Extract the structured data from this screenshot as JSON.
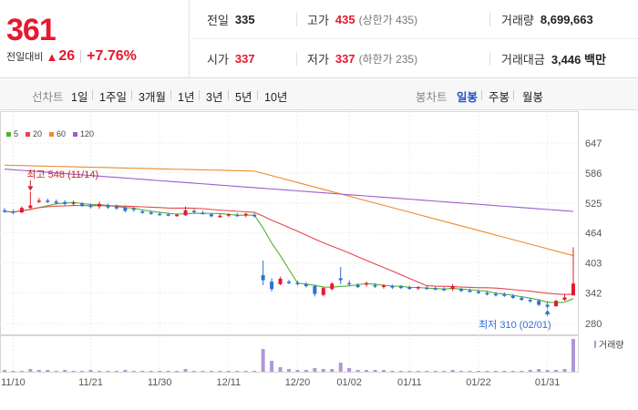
{
  "summary": {
    "price": "361",
    "change_label": "전일대비",
    "change_arrow": "▲",
    "change_value": "26",
    "change_rate": "+7.76%",
    "prev_close": {
      "label": "전일",
      "value": "335"
    },
    "high": {
      "label": "고가",
      "value": "435",
      "limit_text": "(상한가 435)"
    },
    "volume": {
      "label": "거래량",
      "value": "8,699,663"
    },
    "open": {
      "label": "시가",
      "value": "337"
    },
    "low": {
      "label": "저가",
      "value": "337",
      "limit_text": "(하한가 235)"
    },
    "amount": {
      "label": "거래대금",
      "value": "3,446 백만"
    }
  },
  "period_bar": {
    "line_label": "선차트",
    "line_options": [
      "1일",
      "1주일",
      "3개월",
      "1년",
      "3년",
      "5년",
      "10년"
    ],
    "candle_label": "봉차트",
    "candle_options": [
      "일봉",
      "주봉",
      "월봉"
    ],
    "active_candle": "일봉"
  },
  "colors": {
    "up": "#e5182e",
    "down": "#2f6fd6",
    "ma5": "#4fb12f",
    "ma20": "#e8474a",
    "ma60": "#f08a2a",
    "ma120": "#9a5fc9",
    "volume": "#b197d6",
    "active": "#1f55c8"
  },
  "chart_data": {
    "type": "candlestick",
    "legend": [
      "5",
      "20",
      "60",
      "120"
    ],
    "y_ticks": [
      647,
      586,
      525,
      464,
      403,
      342,
      280
    ],
    "x_labels": [
      "11/10",
      "11/21",
      "11/30",
      "12/11",
      "12/20",
      "01/02",
      "01/11",
      "01/22",
      "01/31"
    ],
    "high_annotation": "최고 548 (11/14)",
    "low_annotation": "최저 310 (02/01)",
    "volume_label": "거래량",
    "ohlc": [
      [
        510,
        515,
        505,
        508
      ],
      [
        508,
        512,
        502,
        505
      ],
      [
        506,
        518,
        504,
        515
      ],
      [
        515,
        548,
        512,
        520
      ],
      [
        528,
        535,
        525,
        530
      ],
      [
        530,
        534,
        525,
        527
      ],
      [
        528,
        532,
        522,
        525
      ],
      [
        527,
        531,
        520,
        523
      ],
      [
        524,
        530,
        520,
        526
      ],
      [
        524,
        527,
        517,
        519
      ],
      [
        520,
        524,
        514,
        517
      ],
      [
        518,
        528,
        513,
        523
      ],
      [
        520,
        524,
        513,
        516
      ],
      [
        518,
        522,
        511,
        514
      ],
      [
        516,
        520,
        506,
        509
      ],
      [
        514,
        517,
        507,
        511
      ],
      [
        508,
        512,
        503,
        505
      ],
      [
        506,
        509,
        501,
        503
      ],
      [
        503,
        507,
        499,
        502
      ],
      [
        502,
        505,
        498,
        500
      ],
      [
        500,
        504,
        497,
        501
      ],
      [
        500,
        518,
        499,
        510
      ],
      [
        509,
        513,
        504,
        507
      ],
      [
        505,
        509,
        502,
        503
      ],
      [
        502,
        505,
        496,
        498
      ],
      [
        498,
        503,
        495,
        499
      ],
      [
        500,
        504,
        497,
        502
      ],
      [
        501,
        505,
        497,
        499
      ],
      [
        500,
        505,
        496,
        503
      ],
      [
        501,
        504,
        496,
        498
      ],
      [
        378,
        408,
        358,
        368
      ],
      [
        365,
        372,
        345,
        350
      ],
      [
        360,
        375,
        358,
        371
      ],
      [
        365,
        369,
        360,
        362
      ],
      [
        363,
        367,
        357,
        360
      ],
      [
        360,
        364,
        353,
        356
      ],
      [
        356,
        359,
        335,
        340
      ],
      [
        338,
        355,
        335,
        352
      ],
      [
        350,
        364,
        347,
        361
      ],
      [
        372,
        395,
        360,
        368
      ],
      [
        362,
        368,
        356,
        360
      ],
      [
        358,
        362,
        352,
        354
      ],
      [
        360,
        365,
        355,
        362
      ],
      [
        358,
        362,
        352,
        355
      ],
      [
        356,
        360,
        351,
        357
      ],
      [
        356,
        359,
        350,
        353
      ],
      [
        355,
        358,
        350,
        352
      ],
      [
        354,
        357,
        349,
        350
      ],
      [
        352,
        356,
        348,
        354
      ],
      [
        353,
        356,
        348,
        350
      ],
      [
        352,
        355,
        347,
        349
      ],
      [
        350,
        354,
        346,
        348
      ],
      [
        350,
        360,
        346,
        356
      ],
      [
        350,
        353,
        344,
        346
      ],
      [
        347,
        351,
        343,
        344
      ],
      [
        345,
        349,
        340,
        342
      ],
      [
        342,
        346,
        337,
        339
      ],
      [
        340,
        344,
        335,
        337
      ],
      [
        339,
        343,
        334,
        336
      ],
      [
        336,
        340,
        330,
        332
      ],
      [
        332,
        336,
        326,
        328
      ],
      [
        328,
        332,
        322,
        325
      ],
      [
        326,
        330,
        315,
        318
      ],
      [
        318,
        325,
        310,
        314
      ],
      [
        315,
        328,
        314,
        326
      ],
      [
        328,
        340,
        326,
        333
      ],
      [
        337,
        435,
        337,
        361
      ]
    ],
    "volume_scale": [
      2,
      1,
      1,
      3,
      2,
      2,
      1,
      2,
      1,
      1,
      2,
      1,
      1,
      1,
      2,
      1,
      1,
      1,
      1,
      1,
      1,
      3,
      1,
      1,
      1,
      1,
      1,
      1,
      1,
      1,
      25,
      12,
      5,
      3,
      2,
      2,
      4,
      3,
      3,
      10,
      4,
      2,
      2,
      2,
      2,
      1,
      1,
      1,
      1,
      1,
      1,
      1,
      2,
      1,
      1,
      1,
      1,
      1,
      1,
      1,
      1,
      2,
      3,
      2,
      2,
      3,
      36
    ]
  }
}
